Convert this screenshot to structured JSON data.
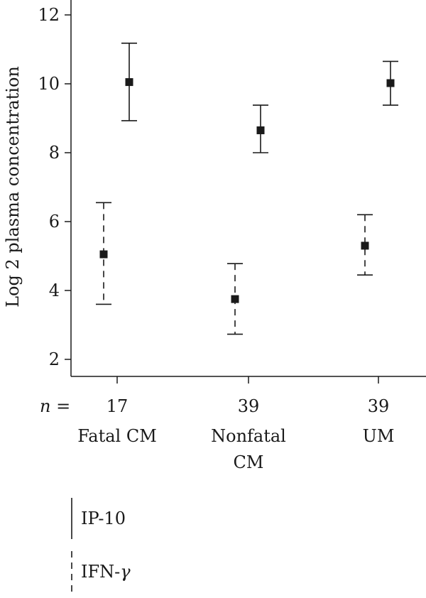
{
  "chart_data": {
    "type": "scatter",
    "ylabel": "Log 2 plasma concentration",
    "ylim": [
      2,
      12.5
    ],
    "yticks": [
      2,
      4,
      6,
      8,
      10,
      12
    ],
    "n_label": "n =",
    "categories": [
      {
        "lines": [
          "Fatal CM"
        ],
        "n": "17"
      },
      {
        "lines": [
          "Nonfatal",
          "CM"
        ],
        "n": "39"
      },
      {
        "lines": [
          "UM"
        ],
        "n": "39"
      }
    ],
    "series": [
      {
        "name": "IP-10",
        "style": "solid",
        "points": [
          {
            "mean": 10.05,
            "low": 8.93,
            "high": 11.18
          },
          {
            "mean": 8.65,
            "low": 8.0,
            "high": 9.38
          },
          {
            "mean": 10.02,
            "low": 9.38,
            "high": 10.65
          }
        ]
      },
      {
        "name": "IFN-",
        "name_suffix": "γ",
        "style": "dashed",
        "points": [
          {
            "mean": 5.05,
            "low": 3.6,
            "high": 6.55
          },
          {
            "mean": 3.75,
            "low": 2.73,
            "high": 4.78
          },
          {
            "mean": 5.3,
            "low": 4.45,
            "high": 6.2
          }
        ]
      }
    ],
    "colors": {
      "marker": "#1a1a1a",
      "line": "#1a1a1a"
    },
    "grid": false
  }
}
